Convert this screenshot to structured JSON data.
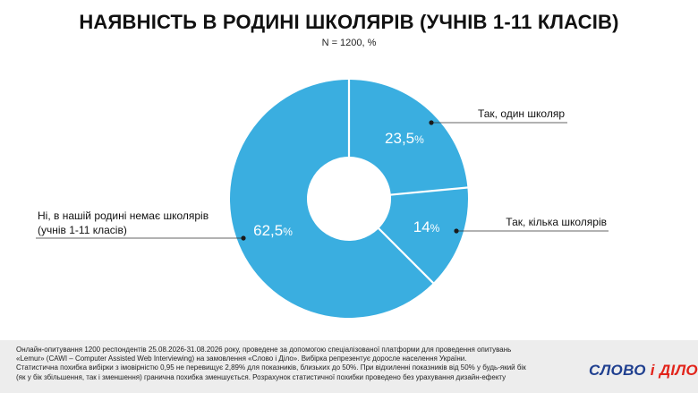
{
  "header": {
    "title": "НАЯВНІСТЬ В РОДИНІ ШКОЛЯРІВ (УЧНІВ 1-11 КЛАСІВ)",
    "subtitle": "N = 1200, %"
  },
  "chart_data": {
    "type": "pie",
    "subtype": "donut",
    "color": "#3aaee0",
    "slices": [
      {
        "label": "Так, один школяр",
        "value": 23.5,
        "value_text": "23,5",
        "unit": "%"
      },
      {
        "label": "Так, кілька школярів",
        "value": 14,
        "value_text": "14",
        "unit": "%"
      },
      {
        "label_lines": [
          "Ні, в нашій родині немає школярів",
          "(учнів 1-11 класів)"
        ],
        "value": 62.5,
        "value_text": "62,5",
        "unit": "%"
      }
    ]
  },
  "footer": {
    "lines": [
      "Онлайн-опитування 1200 респондентів 25.08.2026-31.08.2026 року, проведене за допомогою спеціалізованої платформи для проведення опитувань",
      "«Lemur» (CAWI – Computer Assisted Web Interviewing) на замовлення «Слово і Діло». Вибірка репрезентує доросле населення України.",
      "Статистична похибка вибірки з імовірністю 0,95 не перевищує 2,89% для показників, близьких до 50%. При відхиленні показників від 50% у будь-який бік",
      "(як у бік збільшення, так і зменшення) гранична похибка зменшується. Розрахунок статистичної похибки проведено без урахування дизайн-ефекту"
    ],
    "logo_part1": "СЛОВО",
    "logo_part2": "і ДІЛО"
  }
}
